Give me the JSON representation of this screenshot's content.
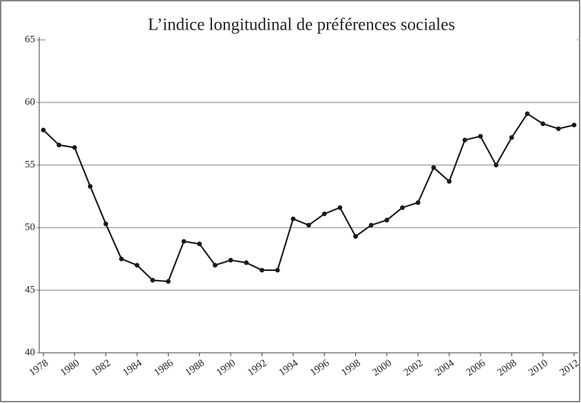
{
  "chart_data": {
    "type": "line",
    "title": "L’indice longitudinal de préférences sociales",
    "x": [
      1978,
      1979,
      1980,
      1981,
      1982,
      1983,
      1984,
      1985,
      1986,
      1987,
      1988,
      1989,
      1990,
      1991,
      1992,
      1993,
      1994,
      1995,
      1996,
      1997,
      1998,
      1999,
      2000,
      2001,
      2002,
      2003,
      2004,
      2005,
      2006,
      2007,
      2008,
      2009,
      2010,
      2011,
      2012
    ],
    "values": [
      57.8,
      56.6,
      56.4,
      53.3,
      50.3,
      47.5,
      47.0,
      45.8,
      45.7,
      48.9,
      48.7,
      47.0,
      47.4,
      47.2,
      46.6,
      46.6,
      50.7,
      50.2,
      51.1,
      51.6,
      49.3,
      50.2,
      50.6,
      51.6,
      52.0,
      54.8,
      53.7,
      57.0,
      57.3,
      55.0,
      57.2,
      59.1,
      58.3,
      57.9,
      58.2
    ],
    "color": "#1a1a1a",
    "xlim": [
      1978,
      2012
    ],
    "xticks": [
      1978,
      1980,
      1982,
      1984,
      1986,
      1988,
      1990,
      1992,
      1994,
      1996,
      1998,
      2000,
      2002,
      2004,
      2006,
      2008,
      2010,
      2012
    ],
    "ylim": [
      40,
      65
    ],
    "yticks": [
      40,
      45,
      50,
      55,
      60,
      65
    ],
    "grid": true
  }
}
